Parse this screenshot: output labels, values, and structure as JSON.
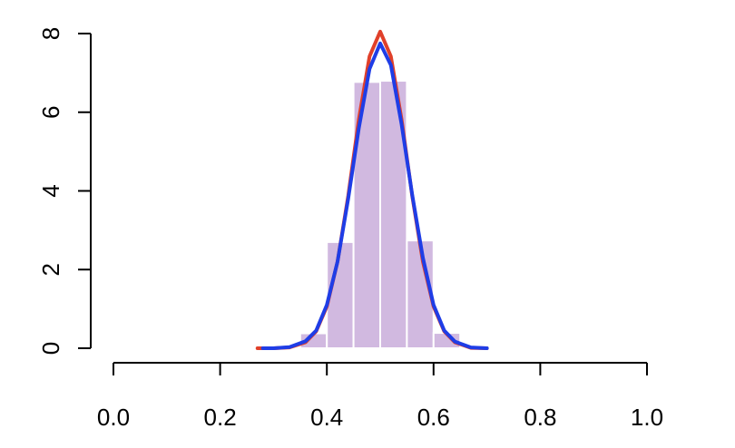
{
  "chart_data": {
    "type": "histogram",
    "bins": [
      0.35,
      0.4,
      0.45,
      0.5,
      0.55,
      0.6,
      0.65
    ],
    "values": [
      0.38,
      2.7,
      6.77,
      6.8,
      2.74,
      0.39
    ],
    "color": "#d1b9e0",
    "xlim": [
      0,
      1
    ],
    "ylim": [
      0,
      8
    ],
    "xticks": [
      {
        "value": 0,
        "label": "0.0"
      },
      0.2,
      0.4,
      0.6,
      0.8,
      {
        "value": 1,
        "label": "1.0"
      }
    ],
    "yticks": [
      0,
      2,
      4,
      6,
      8
    ],
    "lines": [
      {
        "color": "#e0402a",
        "x": [
          0.27,
          0.3,
          0.33,
          0.36,
          0.38,
          0.4,
          0.42,
          0.44,
          0.46,
          0.48,
          0.5,
          0.52,
          0.54,
          0.56,
          0.58,
          0.6,
          0.62,
          0.64,
          0.67,
          0.7
        ],
        "values": [
          0,
          0,
          0.02,
          0.15,
          0.43,
          1.06,
          2.2,
          3.87,
          5.82,
          7.42,
          8.05,
          7.42,
          5.82,
          3.87,
          2.2,
          1.06,
          0.43,
          0.15,
          0.01,
          0
        ]
      },
      {
        "color": "#1f3de6",
        "x": [
          0.28,
          0.3,
          0.33,
          0.36,
          0.38,
          0.4,
          0.42,
          0.44,
          0.46,
          0.48,
          0.5,
          0.52,
          0.54,
          0.56,
          0.58,
          0.6,
          0.62,
          0.64,
          0.67,
          0.7
        ],
        "values": [
          0,
          0,
          0.03,
          0.18,
          0.45,
          1.1,
          2.2,
          3.8,
          5.6,
          7.1,
          7.75,
          7.2,
          5.7,
          3.9,
          2.3,
          1.1,
          0.45,
          0.17,
          0.02,
          0
        ]
      }
    ]
  }
}
